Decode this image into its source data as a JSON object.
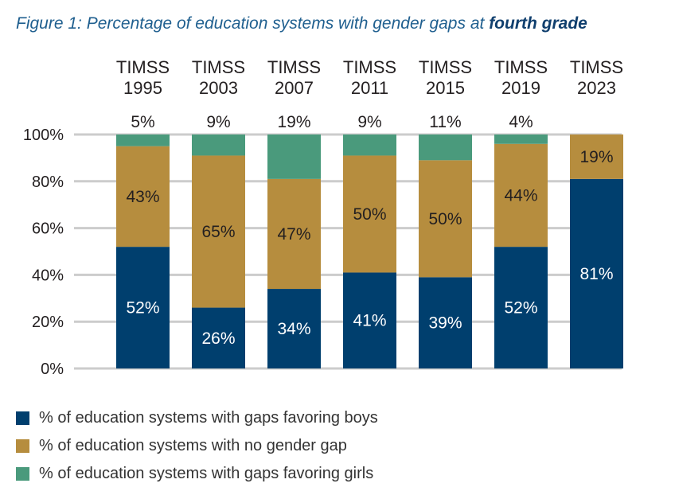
{
  "title": {
    "prefix": "Figure 1: Percentage of education systems with gender gaps at ",
    "emphasis": "fourth grade"
  },
  "colors": {
    "boys": "#003f6e",
    "no_gap": "#b68d3e",
    "girls": "#4a9a7c",
    "grid": "#cccccc",
    "bar_label_light": "#ffffff",
    "bar_label_dark": "#231f20"
  },
  "chart_data": {
    "type": "bar",
    "stacked": true,
    "title": "Figure 1: Percentage of education systems with gender gaps at fourth grade",
    "categories": [
      [
        "TIMSS",
        "1995"
      ],
      [
        "TIMSS",
        "2003"
      ],
      [
        "TIMSS",
        "2007"
      ],
      [
        "TIMSS",
        "2011"
      ],
      [
        "TIMSS",
        "2015"
      ],
      [
        "TIMSS",
        "2019"
      ],
      [
        "TIMSS",
        "2023"
      ]
    ],
    "series": [
      {
        "name": "% of education systems with gaps favoring boys",
        "key": "boys",
        "values": [
          52,
          26,
          34,
          41,
          39,
          52,
          81
        ],
        "labels": [
          "52%",
          "26%",
          "34%",
          "41%",
          "39%",
          "52%",
          "81%"
        ]
      },
      {
        "name": "% of education systems with no gender gap",
        "key": "no_gap",
        "values": [
          43,
          65,
          47,
          50,
          50,
          44,
          19
        ],
        "labels": [
          "43%",
          "65%",
          "47%",
          "50%",
          "50%",
          "44%",
          "19%"
        ]
      },
      {
        "name": "% of education systems with gaps favoring girls",
        "key": "girls",
        "values": [
          5,
          9,
          19,
          9,
          11,
          4,
          0
        ],
        "labels": [
          "5%",
          "9%",
          "19%",
          "9%",
          "11%",
          "4%",
          ""
        ]
      }
    ],
    "y_ticks": [
      {
        "value": 0,
        "label": "0%"
      },
      {
        "value": 20,
        "label": "20%"
      },
      {
        "value": 40,
        "label": "40%"
      },
      {
        "value": 60,
        "label": "60%"
      },
      {
        "value": 80,
        "label": "80%"
      },
      {
        "value": 100,
        "label": "100%"
      }
    ],
    "ylim": [
      0,
      100
    ],
    "grid": true,
    "xlabel": "",
    "ylabel": "",
    "legend_position": "bottom-left"
  },
  "legend": [
    {
      "key": "boys",
      "label": "% of education systems with gaps favoring boys"
    },
    {
      "key": "no_gap",
      "label": "% of education systems with no gender gap"
    },
    {
      "key": "girls",
      "label": "% of education systems with gaps favoring girls"
    }
  ]
}
